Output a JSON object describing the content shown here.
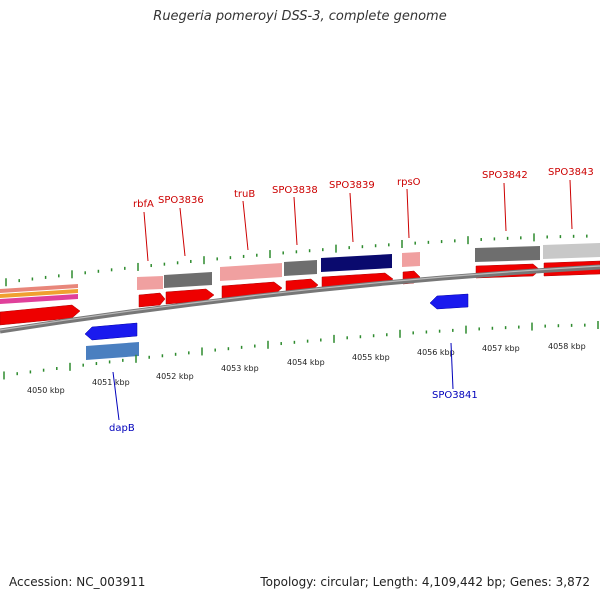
{
  "title": "Ruegeria pomeroyi DSS-3, complete genome",
  "footer": {
    "accession": "Accession: NC_003911",
    "summary": "Topology: circular; Length: 4,109,442 bp; Genes: 3,872"
  },
  "colors": {
    "forward_label": "#cc0000",
    "reverse_label": "#0000bb",
    "tick": "#2e8b2e",
    "backbone": "#888888"
  },
  "scale": {
    "unit": "kbp",
    "labels": [
      {
        "kbp": 4050,
        "text": "4050 kbp"
      },
      {
        "kbp": 4051,
        "text": "4051 kbp"
      },
      {
        "kbp": 4052,
        "text": "4052 kbp"
      },
      {
        "kbp": 4053,
        "text": "4053 kbp"
      },
      {
        "kbp": 4054,
        "text": "4054 kbp"
      },
      {
        "kbp": 4055,
        "text": "4055 kbp"
      },
      {
        "kbp": 4056,
        "text": "4056 kbp"
      },
      {
        "kbp": 4057,
        "text": "4057 kbp"
      },
      {
        "kbp": 4058,
        "text": "4058 kbp"
      }
    ]
  },
  "genes": {
    "forward_labels": [
      "rbfA",
      "SPO3836",
      "truB",
      "SPO3838",
      "SPO3839",
      "rpsO",
      "SPO3842",
      "SPO3843"
    ],
    "reverse_labels": [
      "SPO3841",
      "dapB"
    ]
  }
}
